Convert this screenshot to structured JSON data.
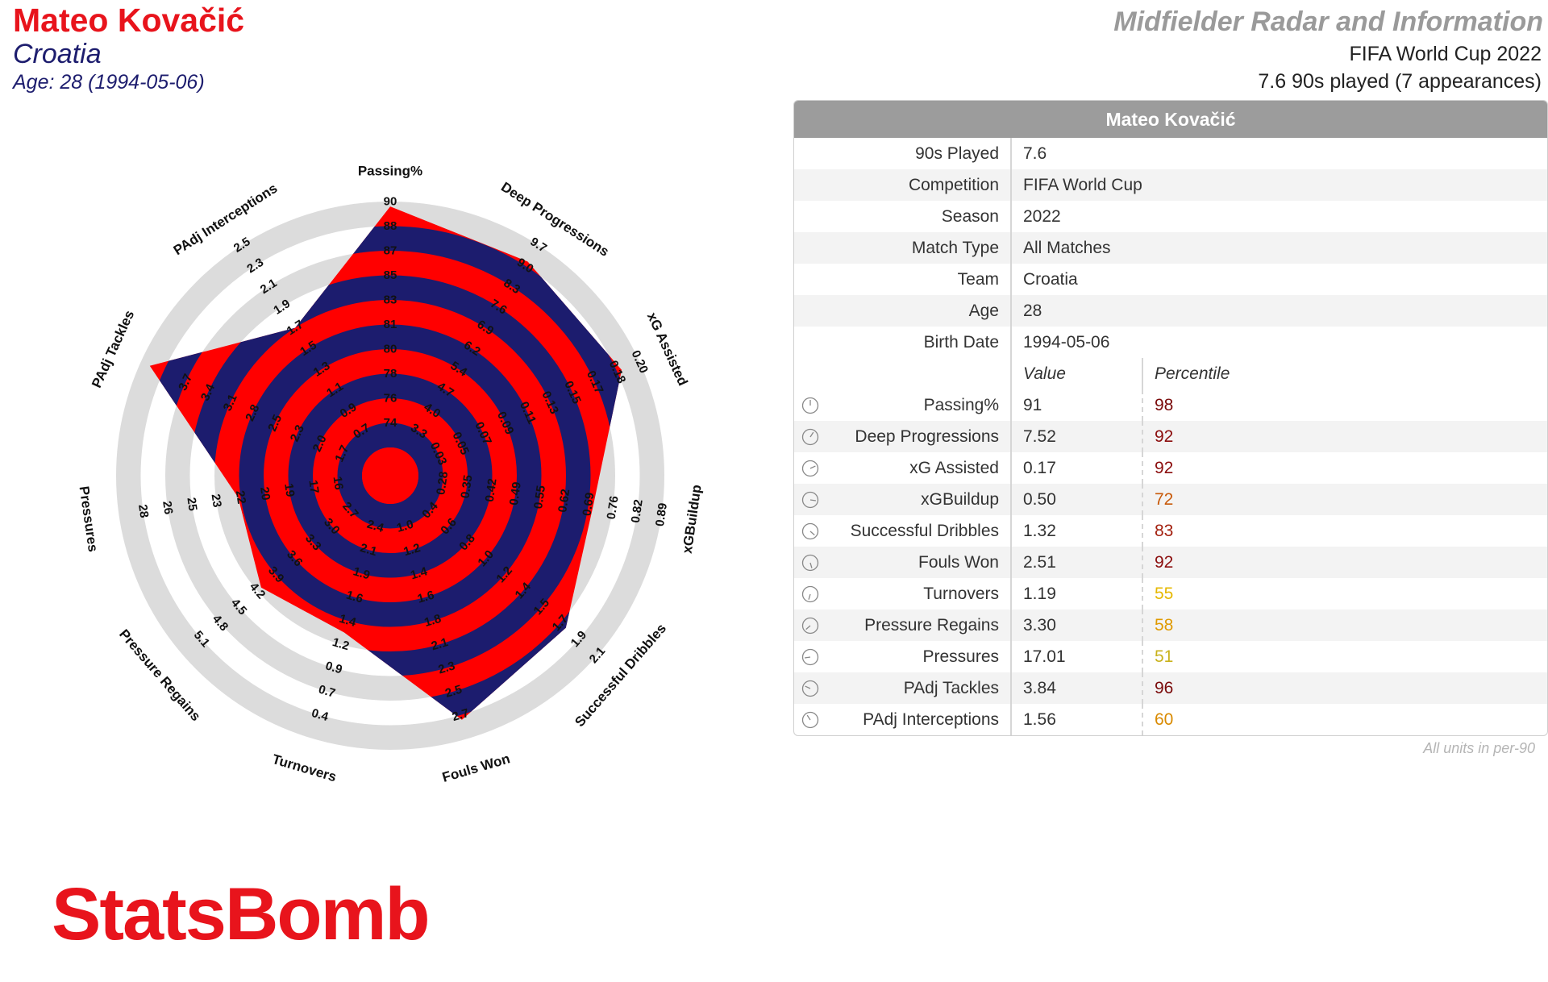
{
  "header": {
    "player_name": "Mateo Kovačić",
    "team": "Croatia",
    "age_line": "Age: 28 (1994-05-06)",
    "title": "Midfielder Radar and Information",
    "competition_line": "FIFA World Cup 2022",
    "played_line": "7.6 90s played (7 appearances)"
  },
  "table": {
    "title": "Mateo Kovačić",
    "info_rows": [
      {
        "key": "90s Played",
        "value": "7.6"
      },
      {
        "key": "Competition",
        "value": "FIFA World Cup"
      },
      {
        "key": "Season",
        "value": "2022"
      },
      {
        "key": "Match Type",
        "value": "All Matches"
      },
      {
        "key": "Team",
        "value": "Croatia"
      },
      {
        "key": "Age",
        "value": "28"
      },
      {
        "key": "Birth Date",
        "value": "1994-05-06"
      }
    ],
    "value_header": "Value",
    "percentile_header": "Percentile",
    "metric_rows": [
      {
        "label": "Passing%",
        "value": "91",
        "percentile": "98",
        "color": "#7a0a0a"
      },
      {
        "label": "Deep Progressions",
        "value": "7.52",
        "percentile": "92",
        "color": "#8b0d0d"
      },
      {
        "label": "xG Assisted",
        "value": "0.17",
        "percentile": "92",
        "color": "#8b0d0d"
      },
      {
        "label": "xGBuildup",
        "value": "0.50",
        "percentile": "72",
        "color": "#c85a0a"
      },
      {
        "label": "Successful Dribbles",
        "value": "1.32",
        "percentile": "83",
        "color": "#a3200f"
      },
      {
        "label": "Fouls Won",
        "value": "2.51",
        "percentile": "92",
        "color": "#8b0d0d"
      },
      {
        "label": "Turnovers",
        "value": "1.19",
        "percentile": "55",
        "color": "#e6b800"
      },
      {
        "label": "Pressure Regains",
        "value": "3.30",
        "percentile": "58",
        "color": "#e09a00"
      },
      {
        "label": "Pressures",
        "value": "17.01",
        "percentile": "51",
        "color": "#c9b21c"
      },
      {
        "label": "PAdj Tackles",
        "value": "3.84",
        "percentile": "96",
        "color": "#7a0a0a"
      },
      {
        "label": "PAdj Interceptions",
        "value": "1.56",
        "percentile": "60",
        "color": "#d98a00"
      }
    ],
    "units_note": "All units in per-90"
  },
  "logo_text": "StatsBomb",
  "chart_data": {
    "type": "radar",
    "fill_colors": [
      "#ff0000",
      "#1c1c6e"
    ],
    "ring_color": "#dcdcdc",
    "axes": [
      {
        "label": "Passing%",
        "ticks": [
          "74",
          "76",
          "78",
          "80",
          "81",
          "83",
          "85",
          "87",
          "88",
          "90"
        ],
        "value": 91,
        "percentile": 98
      },
      {
        "label": "Deep Progressions",
        "ticks": [
          "3.3",
          "4.0",
          "4.7",
          "5.4",
          "6.2",
          "6.9",
          "7.6",
          "8.3",
          "9.0",
          "9.7"
        ],
        "value": 7.52,
        "percentile": 92
      },
      {
        "label": "xG Assisted",
        "ticks": [
          "0.03",
          "0.05",
          "0.07",
          "0.09",
          "0.11",
          "0.13",
          "0.15",
          "0.17",
          "0.18",
          "0.20"
        ],
        "value": 0.17,
        "percentile": 92
      },
      {
        "label": "xGBuildup",
        "ticks": [
          "0.28",
          "0.35",
          "0.42",
          "0.49",
          "0.55",
          "0.62",
          "0.69",
          "0.76",
          "0.82",
          "0.89"
        ],
        "value": 0.5,
        "percentile": 72
      },
      {
        "label": "Successful Dribbles",
        "ticks": [
          "0.4",
          "0.6",
          "0.8",
          "1.0",
          "1.2",
          "1.4",
          "1.5",
          "1.7",
          "1.9",
          "2.1"
        ],
        "value": 1.32,
        "percentile": 83
      },
      {
        "label": "Fouls Won",
        "ticks": [
          "1.0",
          "1.2",
          "1.4",
          "1.6",
          "1.8",
          "2.1",
          "2.3",
          "2.5",
          "2.7"
        ],
        "value": 2.51,
        "percentile": 92
      },
      {
        "label": "Turnovers",
        "ticks": [
          "2.4",
          "2.1",
          "1.9",
          "1.6",
          "1.4",
          "1.2",
          "0.9",
          "0.7",
          "0.4"
        ],
        "value": 1.19,
        "percentile": 55
      },
      {
        "label": "Pressure Regains",
        "ticks": [
          "2.7",
          "3.0",
          "3.3",
          "3.6",
          "3.9",
          "4.2",
          "4.5",
          "4.8",
          "5.1"
        ],
        "value": 3.3,
        "percentile": 58
      },
      {
        "label": "Pressures",
        "ticks": [
          "16",
          "17",
          "19",
          "20",
          "22",
          "23",
          "25",
          "26",
          "28"
        ],
        "value": 17.01,
        "percentile": 51
      },
      {
        "label": "PAdj Tackles",
        "ticks": [
          "1.7",
          "2.0",
          "2.3",
          "2.5",
          "2.8",
          "3.1",
          "3.4",
          "3.7"
        ],
        "value": 3.84,
        "percentile": 96
      },
      {
        "label": "PAdj Interceptions",
        "ticks": [
          "0.7",
          "0.9",
          "1.1",
          "1.3",
          "1.5",
          "1.7",
          "1.9",
          "2.1",
          "2.3",
          "2.5"
        ],
        "value": 1.56,
        "percentile": 60
      }
    ]
  }
}
